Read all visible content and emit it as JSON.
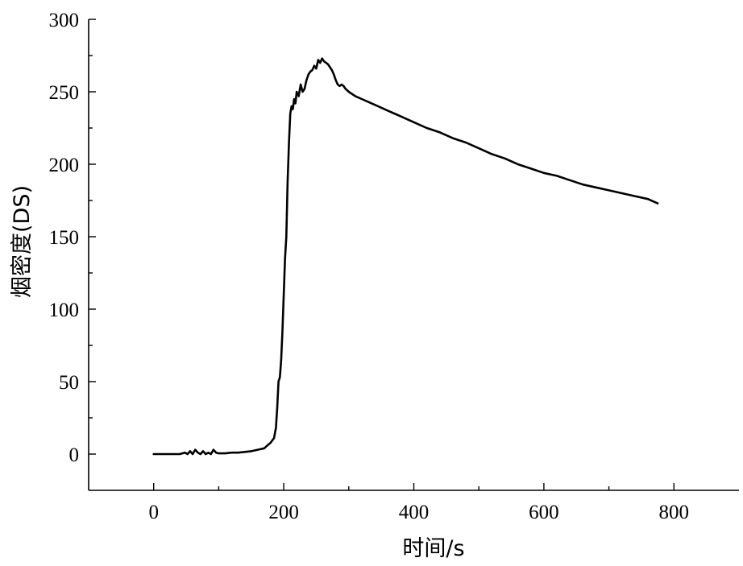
{
  "chart_data": {
    "type": "line",
    "title": "",
    "xlabel": "时间/s",
    "ylabel": "烟密度(DS)",
    "xlim": [
      -100,
      900
    ],
    "ylim": [
      -25,
      300
    ],
    "xticks": [
      0,
      200,
      400,
      600,
      800
    ],
    "yticks": [
      0,
      50,
      100,
      150,
      200,
      250,
      300
    ],
    "grid": false,
    "series": [
      {
        "color": "#000000",
        "x": [
          0,
          20,
          40,
          48,
          52,
          56,
          60,
          64,
          68,
          72,
          76,
          80,
          84,
          88,
          92,
          96,
          100,
          110,
          120,
          130,
          140,
          150,
          160,
          170,
          175,
          180,
          185,
          188,
          190,
          192,
          194,
          196,
          198,
          200,
          202,
          204,
          206,
          208,
          210,
          212,
          214,
          216,
          218,
          220,
          223,
          226,
          229,
          232,
          235,
          238,
          241,
          244,
          247,
          250,
          253,
          256,
          259,
          262,
          265,
          268,
          271,
          274,
          277,
          280,
          283,
          286,
          289,
          292,
          295,
          300,
          310,
          320,
          330,
          340,
          350,
          360,
          370,
          380,
          390,
          400,
          420,
          440,
          460,
          480,
          500,
          520,
          540,
          560,
          580,
          600,
          610,
          620,
          640,
          660,
          680,
          700,
          720,
          740,
          760,
          775
        ],
        "y": [
          0,
          0,
          0,
          1,
          0,
          2,
          0,
          3,
          1,
          0,
          2,
          0,
          1,
          0,
          3,
          1,
          0.5,
          0.5,
          1,
          1,
          1.5,
          2,
          3,
          4,
          6,
          8,
          11,
          18,
          32,
          50,
          53,
          65,
          85,
          110,
          135,
          150,
          188,
          215,
          235,
          240,
          238,
          245,
          242,
          250,
          247,
          255,
          250,
          252,
          258,
          262,
          264,
          265,
          268,
          266,
          272,
          270,
          273,
          271,
          270,
          269,
          267,
          265,
          262,
          258,
          255,
          254,
          255,
          254,
          252,
          250,
          247,
          245,
          243,
          241,
          239,
          237,
          235,
          233,
          231,
          229,
          225,
          222,
          218,
          215,
          211,
          207,
          204,
          200,
          197,
          194,
          193,
          192,
          189,
          186,
          184,
          182,
          180,
          178,
          176,
          173
        ]
      }
    ]
  }
}
